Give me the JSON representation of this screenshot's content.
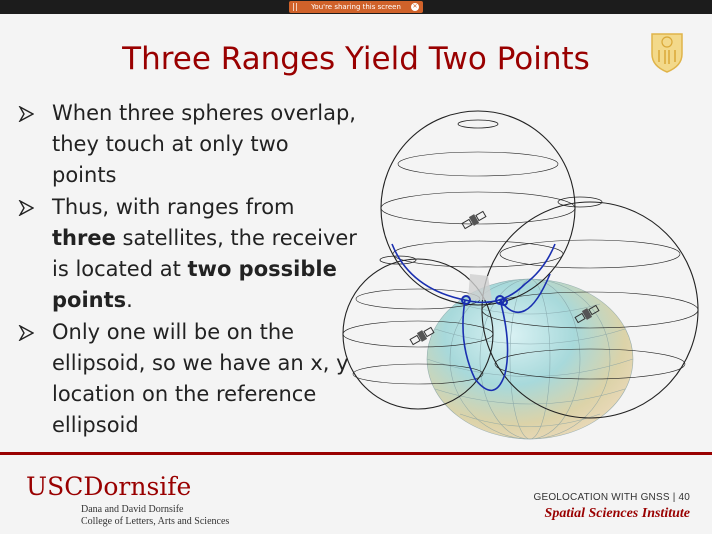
{
  "screen_share": {
    "notice": "You're sharing this screen",
    "stop_icon": "x-icon"
  },
  "slide": {
    "title": "Three Ranges Yield Two Points",
    "bullets": [
      {
        "parts": [
          "When three spheres overlap, they touch at only two points"
        ]
      },
      {
        "pre": "Thus, with ranges from ",
        "b1": "three",
        "mid": " satellites, the receiver is located at ",
        "b2": "two possible points",
        "post": "."
      },
      {
        "parts": [
          "Only one will be on the ellipsoid, so we have an x, y location on the reference ellipsoid"
        ]
      }
    ],
    "figure": {
      "description_icon": "three-spheres-ellipsoid-diagram",
      "satellites": 3
    }
  },
  "footer": {
    "logo_usc": "USC",
    "logo_dornsife": "Dornsife",
    "sub1": "Dana and David Dornsife",
    "sub2": "College of Letters, Arts and Sciences",
    "course": "GEOLOCATION WITH GNSS | 40",
    "institute": "Spatial Sciences Institute"
  },
  "colors": {
    "cardinal": "#990000",
    "share": "#d0622a",
    "gold": "#e8b84a"
  }
}
